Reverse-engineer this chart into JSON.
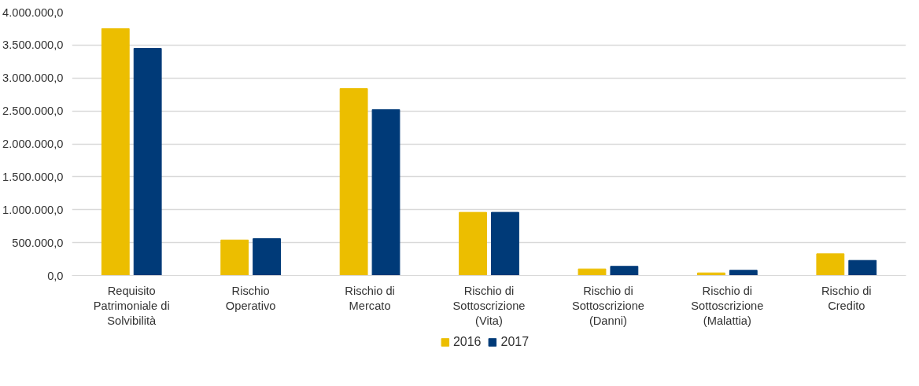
{
  "chart_data": {
    "type": "bar",
    "categories": [
      "Requisito Patrimoniale di Solvibilità",
      "Rischio Operativo",
      "Rischio di Mercato",
      "Rischio di Sottoscrizione (Vita)",
      "Rischio di Sottoscrizione (Danni)",
      "Rischio di Sottoscrizione (Malattia)",
      "Rischio di Credito"
    ],
    "series": [
      {
        "name": "2016",
        "color": "#ecbe00",
        "values": [
          3750000,
          540000,
          2840000,
          960000,
          100000,
          40000,
          330000
        ]
      },
      {
        "name": "2017",
        "color": "#003a78",
        "values": [
          3450000,
          560000,
          2520000,
          960000,
          140000,
          80000,
          230000
        ]
      }
    ],
    "ylim": [
      0,
      4000000
    ],
    "yticks": [
      {
        "value": 0,
        "label": "0,0"
      },
      {
        "value": 500000,
        "label": "500.000,0"
      },
      {
        "value": 1000000,
        "label": "1.000.000,0"
      },
      {
        "value": 1500000,
        "label": "1.500.000,0"
      },
      {
        "value": 2000000,
        "label": "2.000.000,0"
      },
      {
        "value": 2500000,
        "label": "2.500.000,0"
      },
      {
        "value": 3000000,
        "label": "3.000.000,0"
      },
      {
        "value": 3500000,
        "label": "3.500.000,0"
      },
      {
        "value": 4000000,
        "label": "4.000.000,0"
      }
    ],
    "grid": "y",
    "legend": "bottom"
  }
}
